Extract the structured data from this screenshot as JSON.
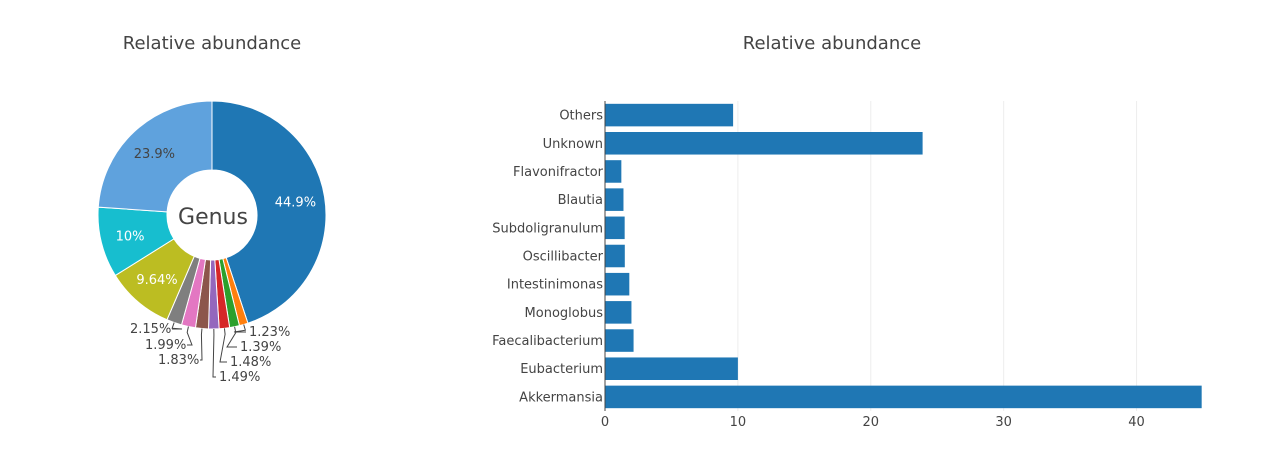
{
  "colors": {
    "palette": [
      "#1f77b4",
      "#ff7f0e",
      "#2ca02c",
      "#d62728",
      "#9467bd",
      "#8c564b",
      "#e377c2",
      "#7f7f7f",
      "#bcbd22",
      "#17becf",
      "#5fa2dd"
    ],
    "bar": "#1f77b4",
    "inside_label_dark": "#444444",
    "inside_label_light": "#ffffff"
  },
  "chart_data": [
    {
      "type": "pie",
      "hole": true,
      "title": "Relative abundance",
      "center_text": "Genus",
      "direction": "clockwise",
      "start": "top",
      "slices": [
        {
          "value": 44.9,
          "label": "44.9%",
          "label_position": "inside"
        },
        {
          "value": 1.23,
          "label": "1.23%",
          "label_position": "outside"
        },
        {
          "value": 1.39,
          "label": "1.39%",
          "label_position": "outside"
        },
        {
          "value": 1.48,
          "label": "1.48%",
          "label_position": "outside"
        },
        {
          "value": 1.49,
          "label": "1.49%",
          "label_position": "outside"
        },
        {
          "value": 1.83,
          "label": "1.83%",
          "label_position": "outside"
        },
        {
          "value": 1.99,
          "label": "1.99%",
          "label_position": "outside"
        },
        {
          "value": 2.15,
          "label": "2.15%",
          "label_position": "outside"
        },
        {
          "value": 9.64,
          "label": "9.64%",
          "label_position": "inside"
        },
        {
          "value": 10.0,
          "label": "10%",
          "label_position": "inside"
        },
        {
          "value": 23.9,
          "label": "23.9%",
          "label_position": "inside"
        }
      ]
    },
    {
      "type": "bar",
      "orientation": "horizontal",
      "title": "Relative abundance",
      "categories": [
        "Akkermansia",
        "Eubacterium",
        "Faecalibacterium",
        "Monoglobus",
        "Intestinimonas",
        "Oscillibacter",
        "Subdoligranulum",
        "Blautia",
        "Flavonifractor",
        "Unknown",
        "Others"
      ],
      "values": [
        44.9,
        10.0,
        2.15,
        1.99,
        1.83,
        1.49,
        1.48,
        1.39,
        1.23,
        23.9,
        9.64
      ],
      "xlim": [
        0,
        45
      ],
      "xticks": [
        0,
        10,
        20,
        30,
        40
      ],
      "grid": true
    }
  ]
}
